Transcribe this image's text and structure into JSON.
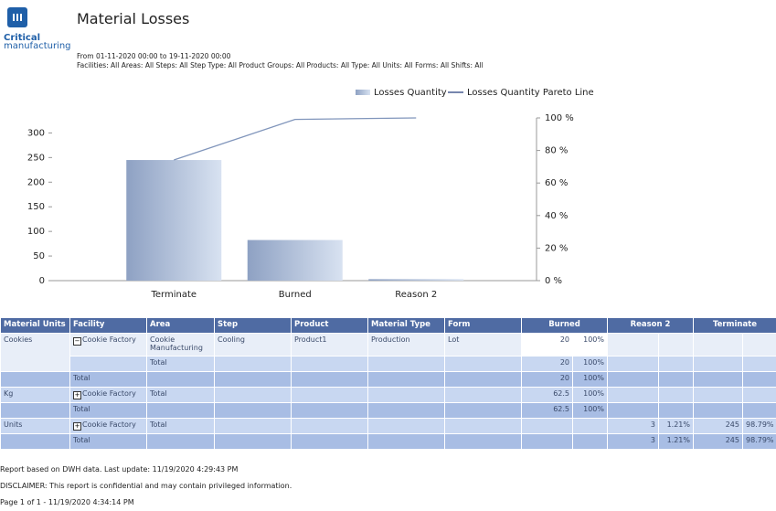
{
  "header": {
    "logo_line1": "Critical",
    "logo_line2": "manufacturing",
    "title": "Material Losses",
    "period": "From 01-11-2020 00:00 to 19-11-2020 00:00",
    "filters": "Facilities: All  Areas: All  Steps: All  Step Type: All  Product Groups: All  Products: All  Type: All  Units: All  Forms: All  Shifts: All"
  },
  "chart_data": {
    "type": "bar",
    "categories": [
      "Terminate",
      "Burned",
      "Reason 2"
    ],
    "series": [
      {
        "name": "Losses Quantity",
        "color": "#9aaccb",
        "values": [
          245,
          82.5,
          3
        ]
      },
      {
        "name": "Losses Quantity Pareto Line",
        "type": "line",
        "axis": "y2",
        "color": "#8095bb",
        "values": [
          74.13,
          99.09,
          100
        ]
      }
    ],
    "ylim": [
      0,
      330.5
    ],
    "yticks": [
      0,
      50,
      100,
      150,
      200,
      250,
      300
    ],
    "y2lim": [
      0,
      100
    ],
    "y2ticks": [
      {
        "value": 0,
        "label": "0 %"
      },
      {
        "value": 20,
        "label": "20 %"
      },
      {
        "value": 40,
        "label": "40 %"
      },
      {
        "value": 60,
        "label": "60 %"
      },
      {
        "value": 80,
        "label": "80 %"
      },
      {
        "value": 100,
        "label": "100 %"
      }
    ],
    "legend": "top-right",
    "grid": false
  },
  "table": {
    "headers": [
      "Material Units",
      "Facility",
      "Area",
      "Step",
      "Product",
      "Material Type",
      "Form",
      "Burned",
      "Reason 2",
      "Terminate"
    ],
    "groups": [
      {
        "unit": "Cookies",
        "rows": [
          {
            "kind": "detail",
            "cells": [
              "Cookie Factory",
              "Cookie Manufacturing",
              "Cooling",
              "Product1",
              "Production",
              "Lot",
              20,
              "100%",
              null,
              null,
              null,
              null
            ]
          },
          {
            "kind": "subtotal",
            "cells": [
              null,
              "Total",
              null,
              null,
              null,
              null,
              20,
              "100%",
              null,
              null,
              null,
              null
            ]
          },
          {
            "kind": "total",
            "cells": [
              "Total",
              null,
              null,
              null,
              null,
              null,
              20,
              "100%",
              null,
              null,
              null,
              null
            ]
          }
        ]
      },
      {
        "unit": "Kg",
        "rows": [
          {
            "kind": "subtotal",
            "cells": [
              "Cookie Factory",
              "Total",
              null,
              null,
              null,
              null,
              62.5,
              "100%",
              null,
              null,
              null,
              null
            ]
          },
          {
            "kind": "total",
            "cells": [
              "Total",
              null,
              null,
              null,
              null,
              null,
              62.5,
              "100%",
              null,
              null,
              null,
              null
            ]
          }
        ]
      },
      {
        "unit": "Units",
        "rows": [
          {
            "kind": "subtotal",
            "cells": [
              "Cookie Factory",
              "Total",
              null,
              null,
              null,
              null,
              null,
              null,
              3,
              "1.21%",
              245,
              "98.79%"
            ]
          },
          {
            "kind": "total",
            "cells": [
              "Total",
              null,
              null,
              null,
              null,
              null,
              null,
              null,
              3,
              "1.21%",
              245,
              "98.79%"
            ]
          }
        ]
      }
    ]
  },
  "footer": {
    "line1": "Report based on DWH data. Last update: 11/19/2020 4:29:43 PM",
    "line2": "DISCLAIMER: This report is confidential and may contain privileged information.",
    "line3": "Page 1 of 1 - 11/19/2020 4:34:14 PM"
  }
}
